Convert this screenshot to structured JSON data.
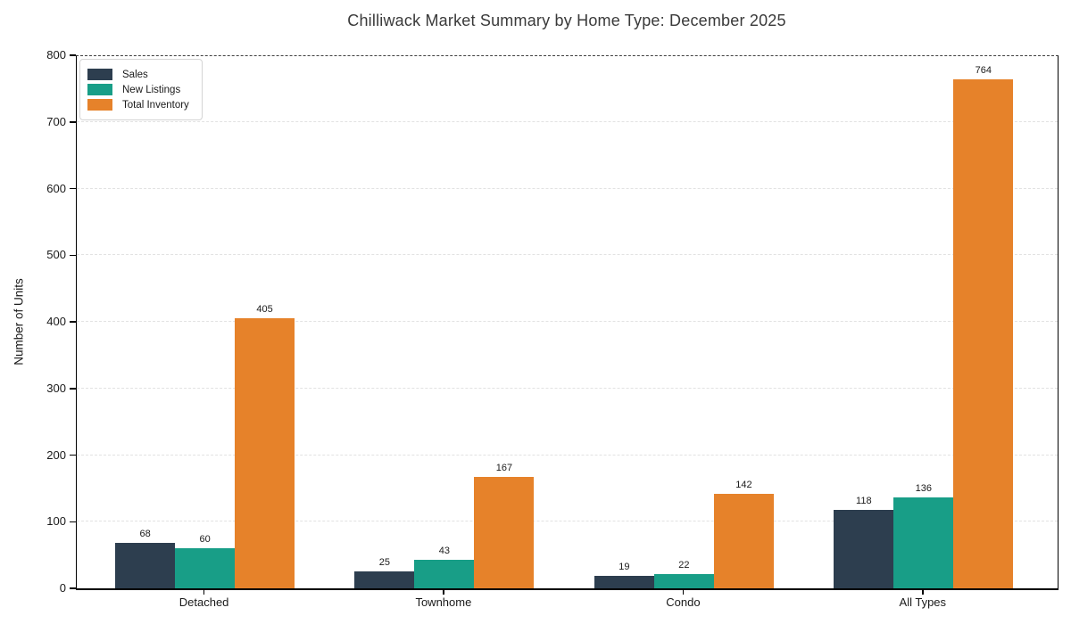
{
  "chart_data": {
    "type": "bar",
    "title": "Chilliwack Market Summary by Home Type: December 2025",
    "xlabel": "",
    "ylabel": "Number of Units",
    "categories": [
      "Detached",
      "Townhome",
      "Condo",
      "All Types"
    ],
    "series": [
      {
        "name": "Sales",
        "color": "#2d3e4f",
        "values": [
          68,
          25,
          19,
          118
        ]
      },
      {
        "name": "New Listings",
        "color": "#189e87",
        "values": [
          60,
          43,
          22,
          136
        ]
      },
      {
        "name": "Total Inventory",
        "color": "#e6822a",
        "values": [
          405,
          167,
          142,
          764
        ]
      }
    ],
    "ylim": [
      0,
      800
    ],
    "ytick_step": 100,
    "grid": "horizontal-dashed",
    "legend_position": "upper-left",
    "bar_value_labels": true
  },
  "colors": {
    "spine": "#000000",
    "grid": "#e2e2e2",
    "top_gridline": "#3f3f3f",
    "title_text": "#3a3a3a",
    "tick_text": "#1a1a1a",
    "legend_border": "#d4d4d4",
    "background": "#ffffff"
  }
}
